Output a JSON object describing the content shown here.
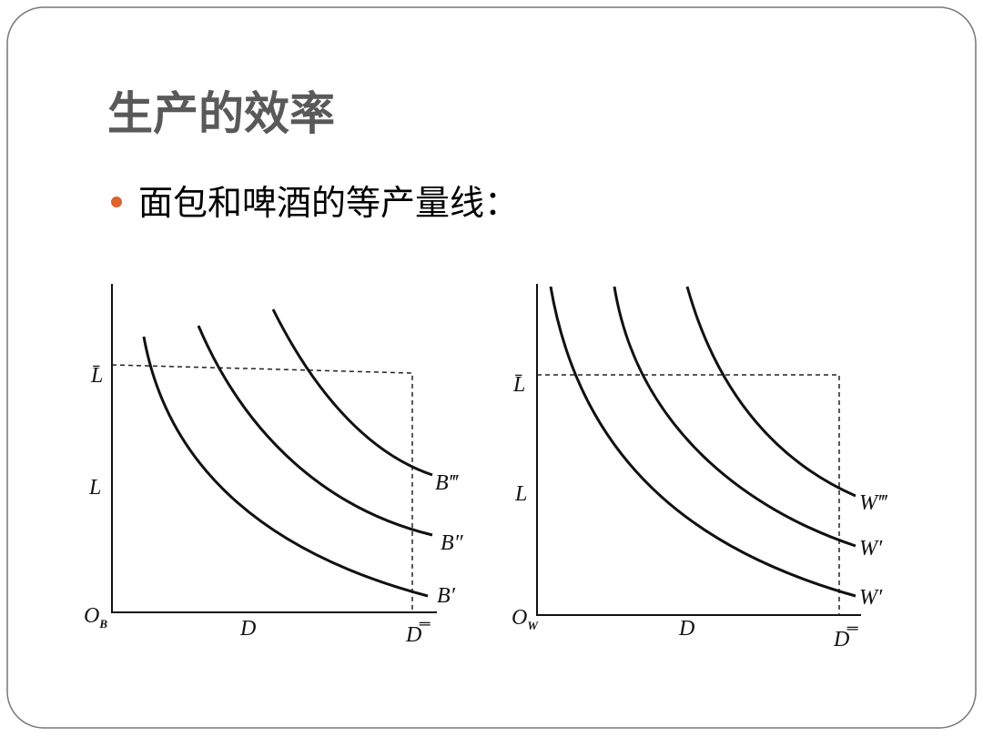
{
  "header": {
    "title": "生产的效率",
    "bullet": "面包和啤酒的等产量线："
  },
  "diagrams": [
    {
      "axis_top": "L̄",
      "axis_y": "L",
      "origin": "O",
      "origin_sub": "B",
      "axis_x": "D",
      "axis_right": "D̿",
      "curves": [
        "B‴",
        "B″",
        "B′"
      ]
    },
    {
      "axis_top": "L̄",
      "axis_y": "L",
      "origin": "O",
      "origin_sub": "W",
      "axis_x": "D",
      "axis_right": "D̿",
      "curves": [
        "W‴",
        "W′",
        "W′"
      ]
    }
  ]
}
